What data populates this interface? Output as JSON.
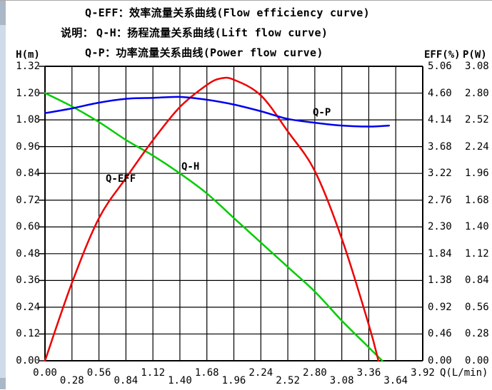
{
  "window": {
    "background": "#ffffff",
    "top_edge_color": "#a9a9a9",
    "scrollbar_track_color": "#cfdbe9",
    "scrollbar_cap_color": "#aab7c6"
  },
  "header": {
    "line1": "Q-EFF：效率流量关系曲线(Flow efficiency curve)",
    "line2_prefix": "说明：",
    "line2": "Q-H：扬程流量关系曲线(Lift flow curve)",
    "line3": "Q-P：功率流量关系曲线(Power flow curve)"
  },
  "chart_data": {
    "type": "line",
    "grid": "on",
    "grid_color": "#000000",
    "x_axis": {
      "label": "Q(L/min)",
      "min": 0,
      "max": 3.92,
      "tick_labels": [
        "0.00",
        "0.28",
        "0.56",
        "0.84",
        "1.12",
        "1.40",
        "1.68",
        "1.96",
        "2.24",
        "2.52",
        "2.80",
        "3.08",
        "3.36",
        "3.64",
        "3.92"
      ]
    },
    "y_left": {
      "label": "H(m)",
      "min": 0,
      "max": 1.32,
      "tick_labels": [
        "1.32",
        "1.20",
        "1.08",
        "0.96",
        "0.84",
        "0.72",
        "0.60",
        "0.48",
        "0.36",
        "0.24",
        "0.12",
        "0.00"
      ]
    },
    "y_right_eff": {
      "label": "EFF(%)",
      "min": 0,
      "max": 5.06,
      "tick_labels": [
        "5.06",
        "4.60",
        "4.14",
        "3.68",
        "3.22",
        "2.76",
        "2.30",
        "1.84",
        "1.38",
        "0.92",
        "0.46",
        "0.00"
      ]
    },
    "y_right_p": {
      "label": "P(W)",
      "min": 0,
      "max": 3.08,
      "tick_labels": [
        "3.08",
        "2.80",
        "2.52",
        "2.24",
        "1.96",
        "1.68",
        "1.40",
        "1.12",
        "0.84",
        "0.56",
        "0.28",
        "0.00"
      ]
    },
    "series": [
      {
        "name": "Q-H",
        "description": "扬程流量关系曲线 (Lift flow curve)",
        "axis": "H",
        "color": "#00cc00",
        "points": [
          [
            0.0,
            1.2
          ],
          [
            0.28,
            1.14
          ],
          [
            0.56,
            1.07
          ],
          [
            0.84,
            0.99
          ],
          [
            1.12,
            0.92
          ],
          [
            1.4,
            0.84
          ],
          [
            1.68,
            0.75
          ],
          [
            1.96,
            0.64
          ],
          [
            2.24,
            0.53
          ],
          [
            2.52,
            0.42
          ],
          [
            2.8,
            0.31
          ],
          [
            3.08,
            0.18
          ],
          [
            3.36,
            0.06
          ],
          [
            3.5,
            0.0
          ]
        ]
      },
      {
        "name": "Q-EFF",
        "description": "效率流量关系曲线 (Flow efficiency curve)",
        "axis": "EFF",
        "color": "#ee0000",
        "points": [
          [
            0.0,
            0.0
          ],
          [
            0.28,
            1.34
          ],
          [
            0.56,
            2.45
          ],
          [
            0.84,
            3.14
          ],
          [
            1.12,
            3.79
          ],
          [
            1.4,
            4.36
          ],
          [
            1.68,
            4.74
          ],
          [
            1.82,
            4.85
          ],
          [
            1.96,
            4.83
          ],
          [
            2.24,
            4.56
          ],
          [
            2.52,
            3.94
          ],
          [
            2.8,
            3.26
          ],
          [
            3.08,
            2.1
          ],
          [
            3.36,
            0.62
          ],
          [
            3.46,
            0.0
          ]
        ]
      },
      {
        "name": "Q-P",
        "description": "功率流量关系曲线 (Power flow curve)",
        "axis": "P",
        "color": "#0000ee",
        "points": [
          [
            0.0,
            2.59
          ],
          [
            0.28,
            2.64
          ],
          [
            0.56,
            2.7
          ],
          [
            0.84,
            2.74
          ],
          [
            1.12,
            2.75
          ],
          [
            1.4,
            2.76
          ],
          [
            1.68,
            2.73
          ],
          [
            1.96,
            2.68
          ],
          [
            2.24,
            2.61
          ],
          [
            2.52,
            2.53
          ],
          [
            2.8,
            2.49
          ],
          [
            3.08,
            2.46
          ],
          [
            3.36,
            2.45
          ],
          [
            3.57,
            2.46
          ]
        ]
      }
    ]
  }
}
